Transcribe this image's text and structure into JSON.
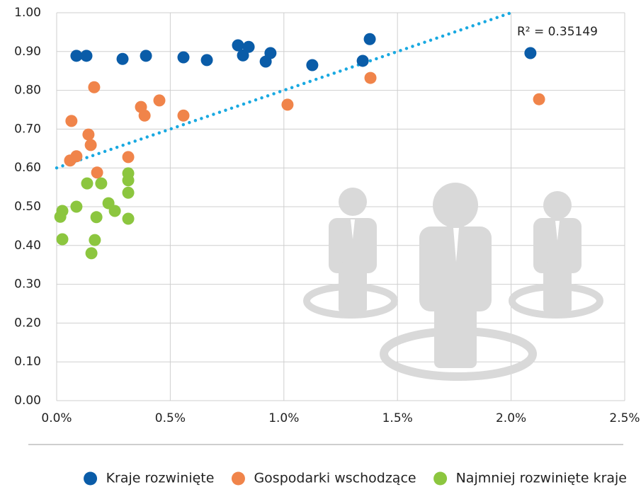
{
  "chart_data": {
    "type": "scatter",
    "xlim": [
      0,
      2.5
    ],
    "xticks": [
      {
        "value": 0,
        "label": "0.0%"
      },
      {
        "value": 0.5,
        "label": "0.5%"
      },
      {
        "value": 1,
        "label": "1.0%"
      },
      {
        "value": 1.5,
        "label": "1.5%"
      },
      {
        "value": 2,
        "label": "2.0%"
      },
      {
        "value": 2.5,
        "label": "2.5%"
      }
    ],
    "ylim": [
      0,
      1
    ],
    "yticks": [
      {
        "value": 0,
        "label": "0.00"
      },
      {
        "value": 0.1,
        "label": "0.10"
      },
      {
        "value": 0.2,
        "label": "0.20"
      },
      {
        "value": 0.3,
        "label": "0.30"
      },
      {
        "value": 0.4,
        "label": "0.40"
      },
      {
        "value": 0.5,
        "label": "0.50"
      },
      {
        "value": 0.6,
        "label": "0.60"
      },
      {
        "value": 0.7,
        "label": "0.70"
      },
      {
        "value": 0.8,
        "label": "0.80"
      },
      {
        "value": 0.9,
        "label": "0.90"
      },
      {
        "value": 1,
        "label": "1.00"
      }
    ],
    "grid": true,
    "legend": "bottom",
    "series": [
      {
        "name": "Kraje rozwinięte",
        "color": "#0a5ca8",
        "x": [
          0.087,
          0.131,
          0.29,
          0.393,
          0.558,
          0.661,
          0.798,
          0.845,
          0.82,
          0.92,
          0.941,
          1.125,
          1.347,
          1.378,
          2.085
        ],
        "values": [
          0.889,
          0.889,
          0.881,
          0.889,
          0.885,
          0.878,
          0.916,
          0.912,
          0.89,
          0.874,
          0.896,
          0.865,
          0.876,
          0.932,
          0.896
        ]
      },
      {
        "name": "Gospodarki wschodzące",
        "color": "#f0844a",
        "x": [
          0.065,
          0.059,
          0.087,
          0.14,
          0.15,
          0.165,
          0.178,
          0.371,
          0.387,
          0.452,
          0.558,
          0.315,
          1.016,
          1.381,
          2.123
        ],
        "values": [
          0.721,
          0.619,
          0.63,
          0.686,
          0.659,
          0.808,
          0.588,
          0.757,
          0.735,
          0.774,
          0.735,
          0.628,
          0.763,
          0.832,
          0.777
        ]
      },
      {
        "name": "Najmniej rozwinięte kraje",
        "color": "#8cc63f",
        "x": [
          0.016,
          0.025,
          0.025,
          0.087,
          0.134,
          0.196,
          0.175,
          0.168,
          0.153,
          0.228,
          0.256,
          0.315,
          0.315,
          0.315,
          0.315
        ],
        "values": [
          0.474,
          0.489,
          0.416,
          0.5,
          0.56,
          0.56,
          0.473,
          0.414,
          0.38,
          0.509,
          0.489,
          0.586,
          0.568,
          0.536,
          0.469
        ]
      }
    ],
    "trendline": {
      "x": [
        0,
        2
      ],
      "values": [
        0.6,
        1
      ],
      "color": "#19a9e1",
      "label": "R² = 0.35149"
    }
  }
}
